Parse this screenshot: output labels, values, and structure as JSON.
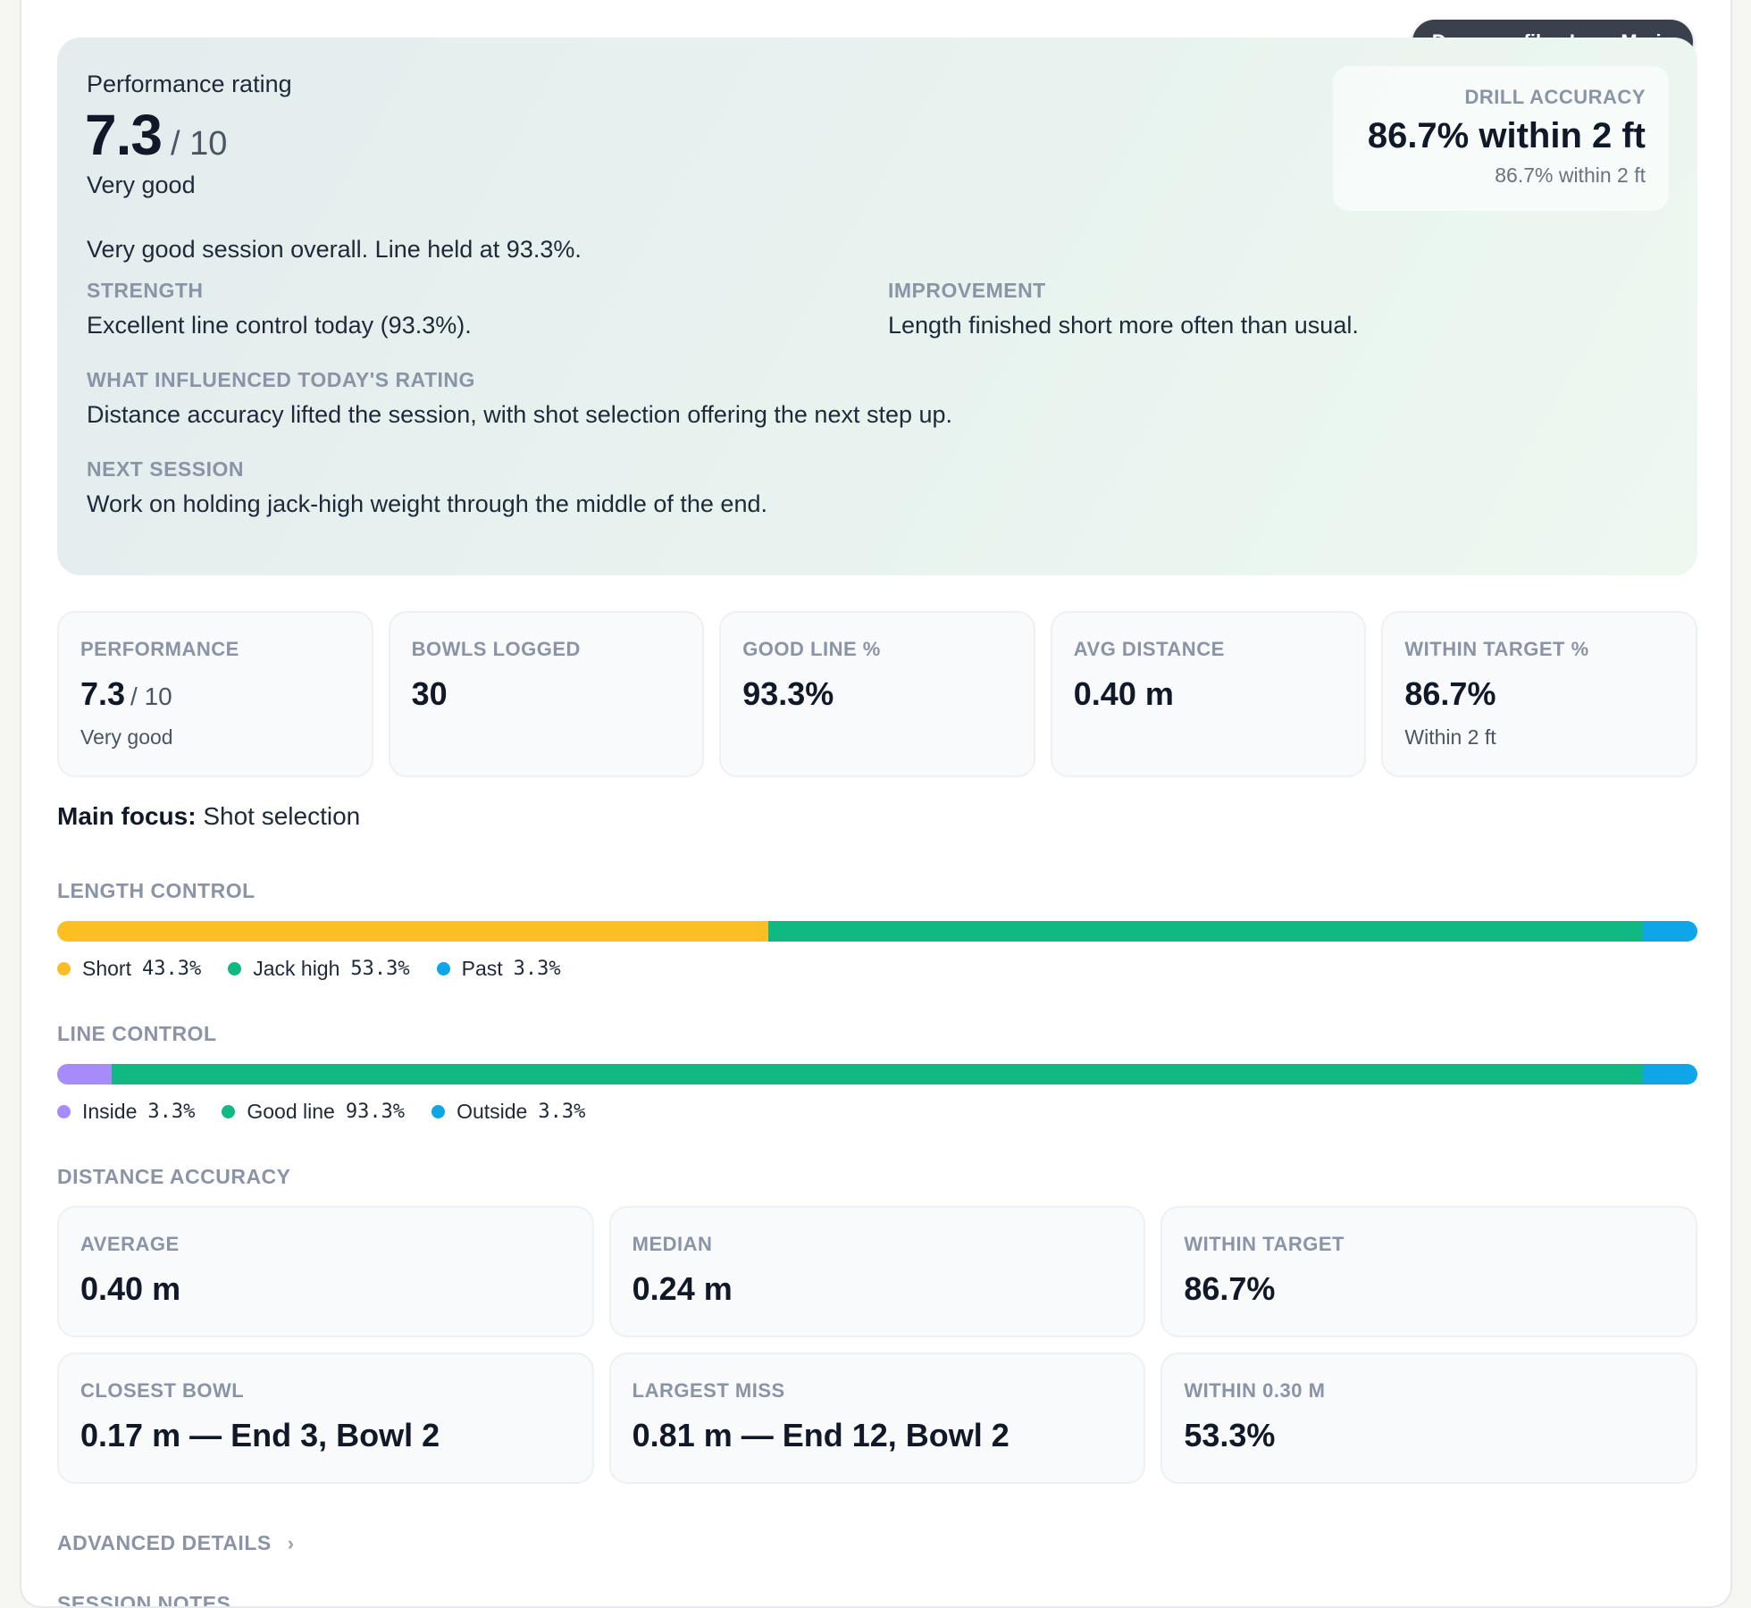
{
  "badge": "Demo profile · Luca Marin",
  "hero": {
    "label": "Performance rating",
    "score": "7.3",
    "score_of": "/ 10",
    "grade": "Very good",
    "summary": "Very good session overall. Line held at 93.3%.",
    "strength_label": "STRENGTH",
    "strength_text": "Excellent line control today (93.3%).",
    "improvement_label": "IMPROVEMENT",
    "improvement_text": "Length finished short more often than usual.",
    "influence_label": "WHAT INFLUENCED TODAY'S RATING",
    "influence_text": "Distance accuracy lifted the session, with shot selection offering the next step up.",
    "next_label": "NEXT SESSION",
    "next_text": "Work on holding jack-high weight through the middle of the end."
  },
  "drill": {
    "label": "DRILL ACCURACY",
    "value": "86.7% within 2 ft",
    "sub": "86.7% within 2 ft"
  },
  "stats": [
    {
      "label": "PERFORMANCE",
      "value": "7.3",
      "of": "/ 10",
      "sub": "Very good"
    },
    {
      "label": "BOWLS LOGGED",
      "value": "30",
      "of": "",
      "sub": ""
    },
    {
      "label": "GOOD LINE %",
      "value": "93.3%",
      "of": "",
      "sub": ""
    },
    {
      "label": "AVG DISTANCE",
      "value": "0.40 m",
      "of": "",
      "sub": ""
    },
    {
      "label": "WITHIN TARGET %",
      "value": "86.7%",
      "of": "",
      "sub": "Within 2 ft"
    }
  ],
  "focus": {
    "label": "Main focus:",
    "value": "Shot selection"
  },
  "length_control": {
    "title": "LENGTH CONTROL",
    "segments": [
      {
        "name": "Short",
        "value": "43.3%",
        "fraction": 0.4333,
        "color": "#fbbf24"
      },
      {
        "name": "Jack high",
        "value": "53.3%",
        "fraction": 0.5333,
        "color": "#10b981"
      },
      {
        "name": "Past",
        "value": "3.3%",
        "fraction": 0.0333,
        "color": "#0ea5e9"
      }
    ]
  },
  "line_control": {
    "title": "LINE CONTROL",
    "segments": [
      {
        "name": "Inside",
        "value": "3.3%",
        "fraction": 0.0333,
        "color": "#a78bfa"
      },
      {
        "name": "Good line",
        "value": "93.3%",
        "fraction": 0.9333,
        "color": "#10b981"
      },
      {
        "name": "Outside",
        "value": "3.3%",
        "fraction": 0.0333,
        "color": "#0ea5e9"
      }
    ]
  },
  "distance": {
    "title": "DISTANCE ACCURACY",
    "cards": [
      {
        "label": "AVERAGE",
        "value": "0.40 m"
      },
      {
        "label": "MEDIAN",
        "value": "0.24 m"
      },
      {
        "label": "WITHIN TARGET",
        "value": "86.7%"
      },
      {
        "label": "CLOSEST BOWL",
        "value": "0.17 m — End 3, Bowl 2"
      },
      {
        "label": "LARGEST MISS",
        "value": "0.81 m — End 12, Bowl 2"
      },
      {
        "label": "WITHIN 0.30 M",
        "value": "53.3%"
      }
    ]
  },
  "advanced": "ADVANCED DETAILS",
  "notes": "SESSION NOTES"
}
